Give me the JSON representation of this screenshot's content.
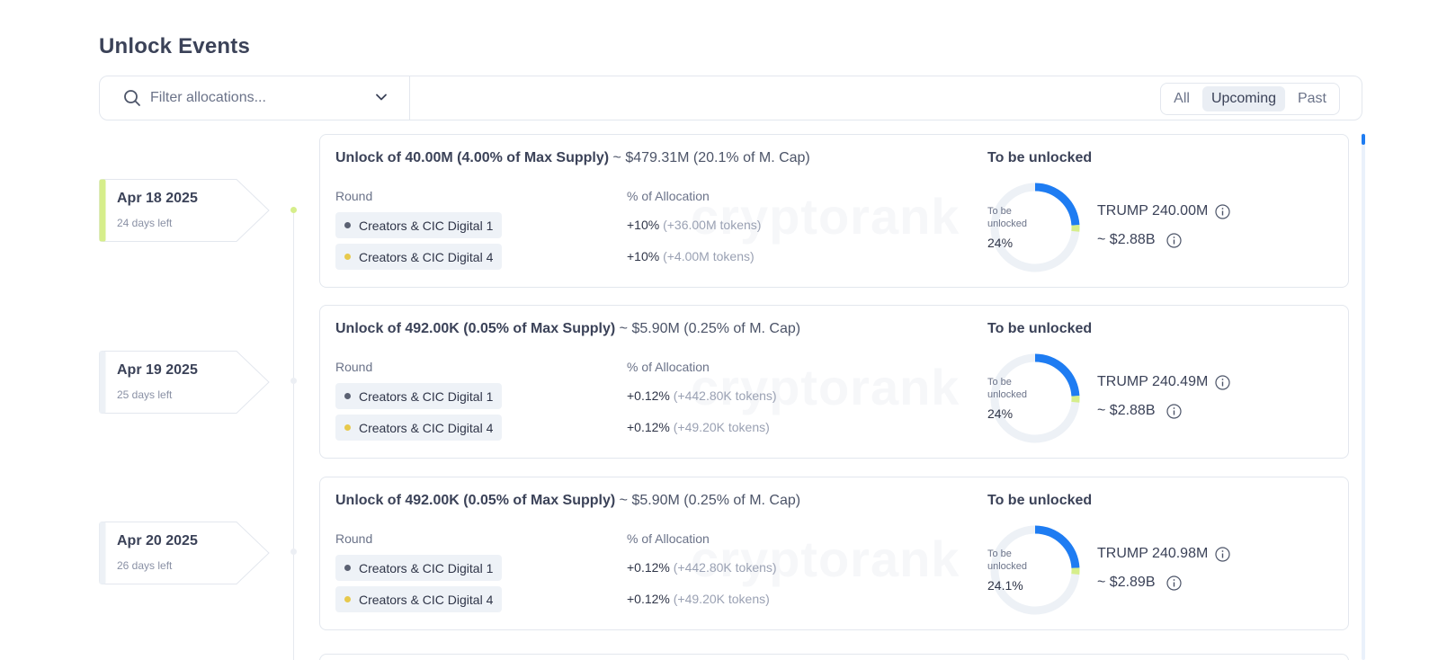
{
  "page": {
    "title": "Unlock Events"
  },
  "filter": {
    "placeholder": "Filter allocations...",
    "segments": [
      "All",
      "Upcoming",
      "Past"
    ],
    "active_segment": "Upcoming"
  },
  "colors": {
    "accent": "#1e7cf2",
    "active_date": "#d6ee8b",
    "round1_dot": "#5b6172",
    "round2_dot": "#e7c94c",
    "donut_track": "#edf1f6",
    "donut_small": "#d6ee8b"
  },
  "labels": {
    "round_header": "Round",
    "alloc_header": "% of Allocation",
    "unlock_header": "To be unlocked",
    "donut_line1": "To be",
    "donut_line2": "unlocked"
  },
  "events": [
    {
      "date": "Apr 18 2025",
      "days_left": "24 days left",
      "active": true,
      "title_strong": "Unlock of 40.00M (4.00% of Max Supply)",
      "title_soft": "~ $479.31M (20.1% of M. Cap)",
      "rounds": [
        {
          "name": "Creators & CIC Digital 1",
          "pct": "+10%",
          "tokens": "(+36.00M tokens)"
        },
        {
          "name": "Creators & CIC Digital 4",
          "pct": "+10%",
          "tokens": "(+4.00M tokens)"
        }
      ],
      "donut_pct_label": "24%",
      "donut_fraction": 0.24,
      "token_amount": "TRUMP 240.00M",
      "usd_amount": "~ $2.88B"
    },
    {
      "date": "Apr 19 2025",
      "days_left": "25 days left",
      "active": false,
      "title_strong": "Unlock of 492.00K (0.05% of Max Supply)",
      "title_soft": "~ $5.90M (0.25% of M. Cap)",
      "rounds": [
        {
          "name": "Creators & CIC Digital 1",
          "pct": "+0.12%",
          "tokens": "(+442.80K tokens)"
        },
        {
          "name": "Creators & CIC Digital 4",
          "pct": "+0.12%",
          "tokens": "(+49.20K tokens)"
        }
      ],
      "donut_pct_label": "24%",
      "donut_fraction": 0.24,
      "token_amount": "TRUMP 240.49M",
      "usd_amount": "~ $2.88B"
    },
    {
      "date": "Apr 20 2025",
      "days_left": "26 days left",
      "active": false,
      "title_strong": "Unlock of 492.00K (0.05% of Max Supply)",
      "title_soft": "~ $5.90M (0.25% of M. Cap)",
      "rounds": [
        {
          "name": "Creators & CIC Digital 1",
          "pct": "+0.12%",
          "tokens": "(+442.80K tokens)"
        },
        {
          "name": "Creators & CIC Digital 4",
          "pct": "+0.12%",
          "tokens": "(+49.20K tokens)"
        }
      ],
      "donut_pct_label": "24.1%",
      "donut_fraction": 0.241,
      "token_amount": "TRUMP 240.98M",
      "usd_amount": "~ $2.89B"
    }
  ]
}
